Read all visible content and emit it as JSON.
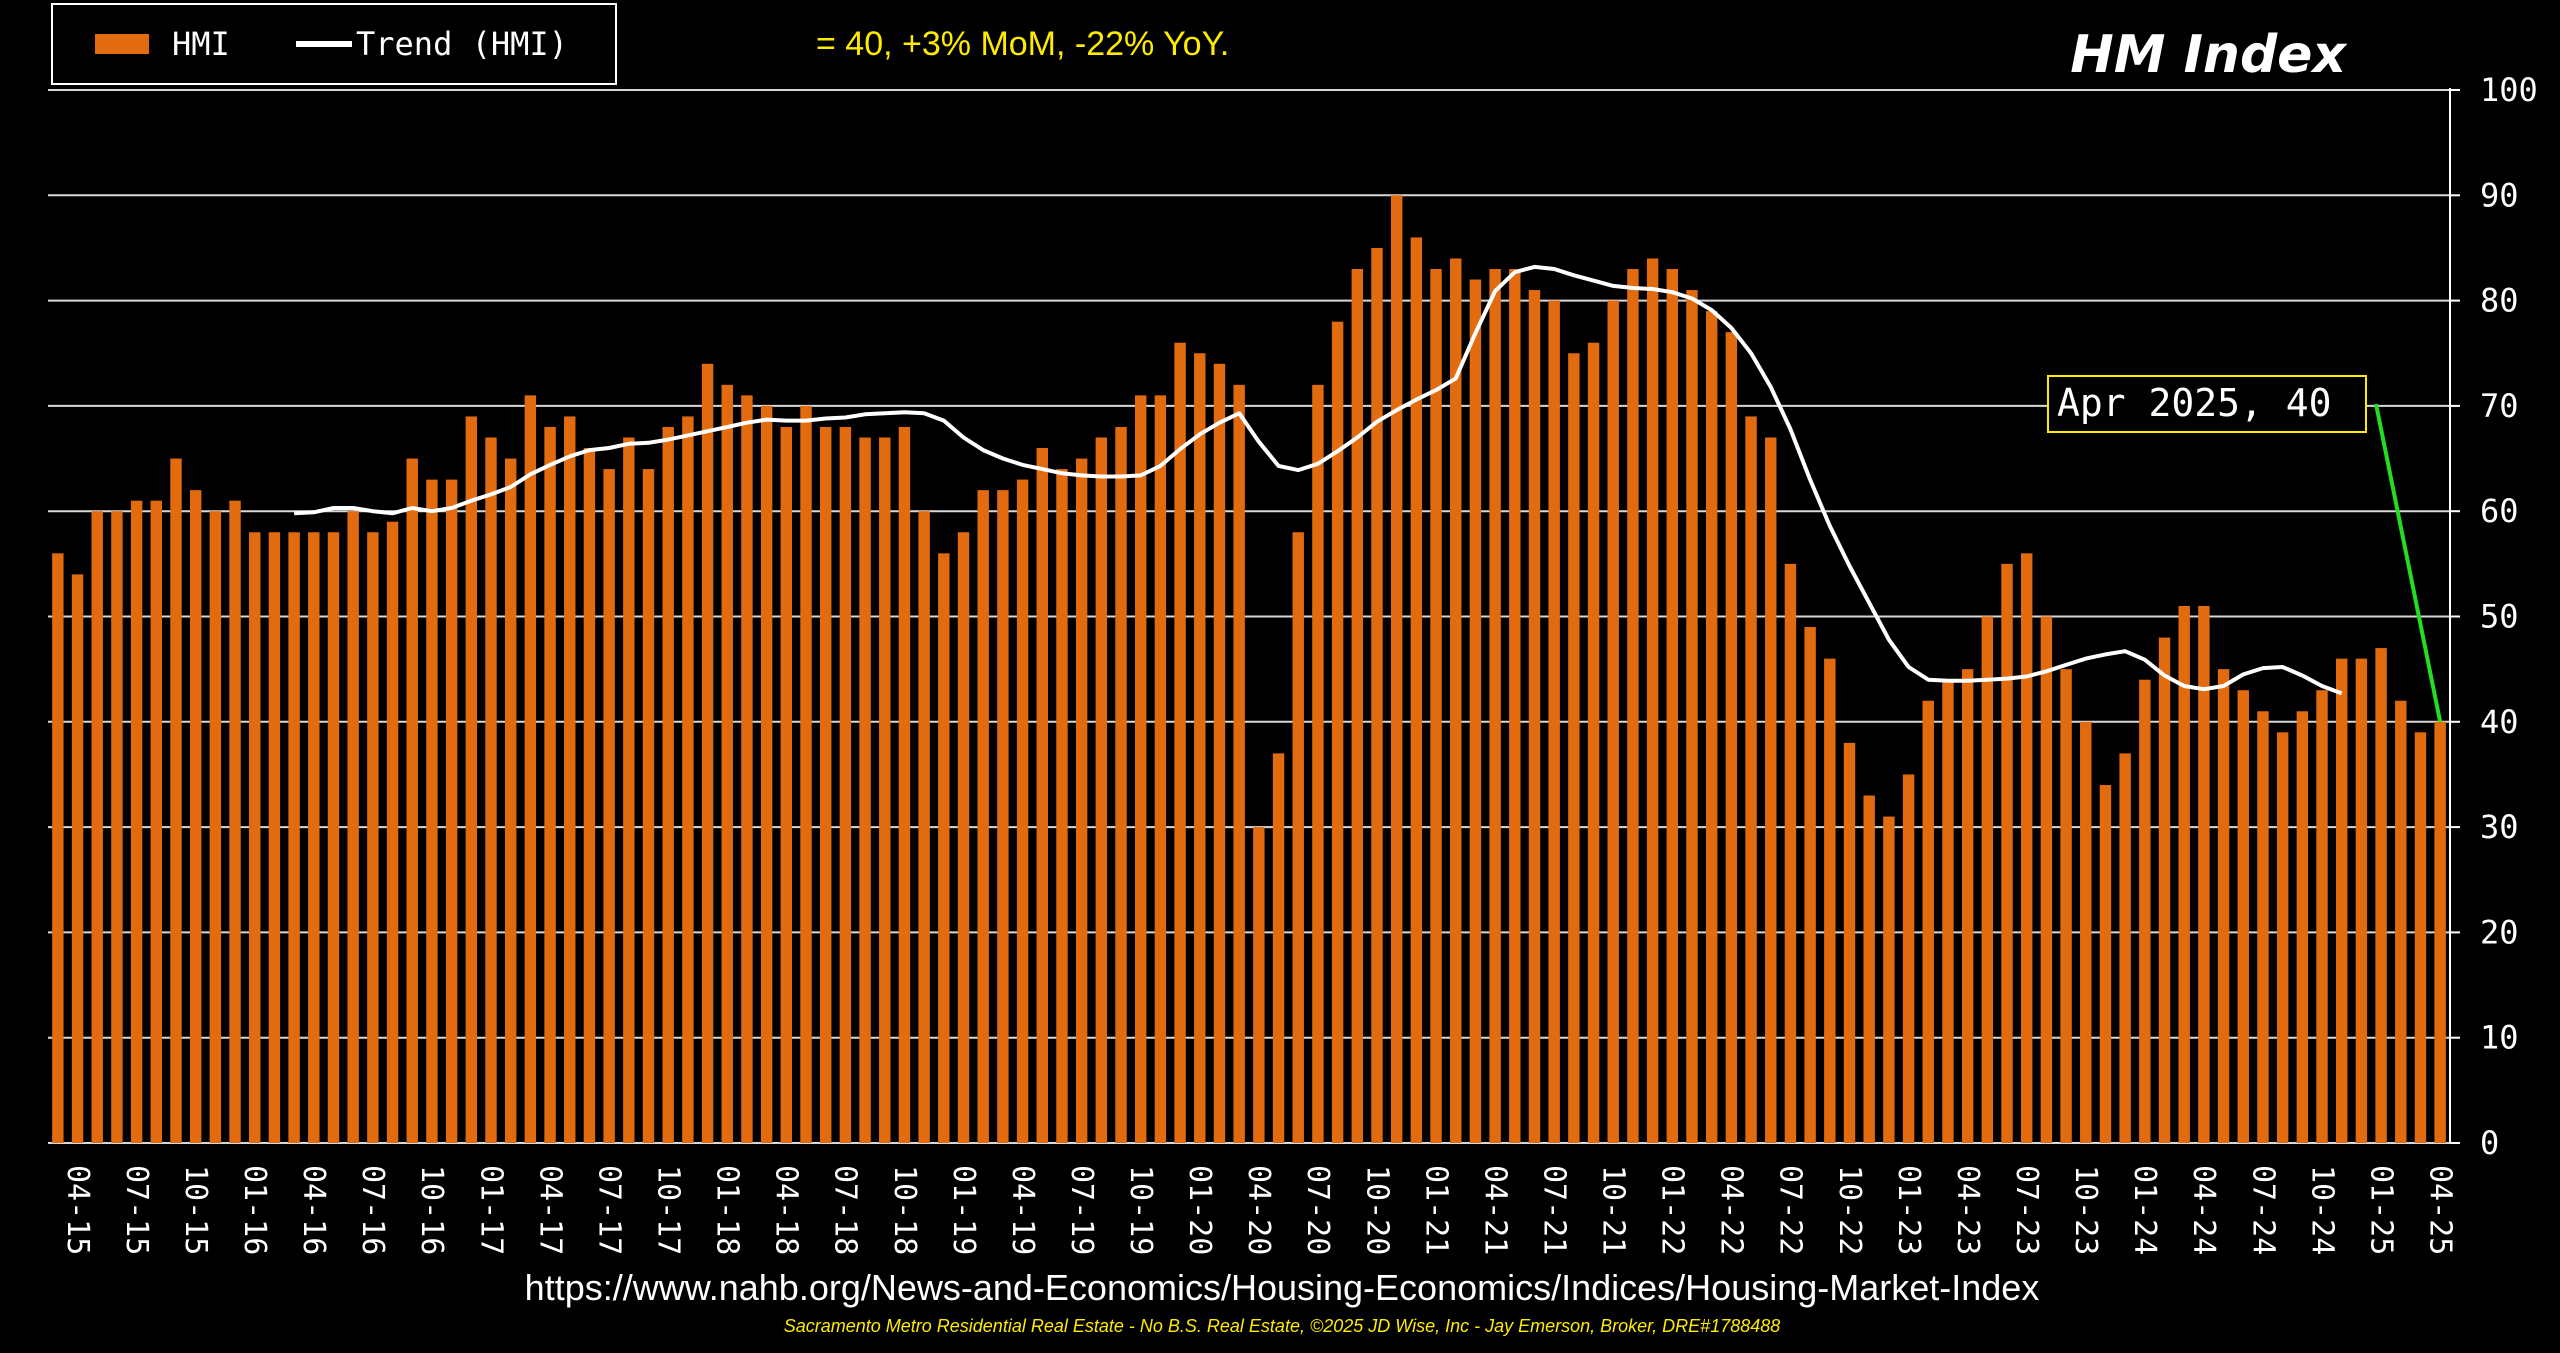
{
  "colors": {
    "background": "#000000",
    "bar": "#e26b10",
    "trend": "#ffffff",
    "grid": "#d8d8d8",
    "subtitle": "#ffeb00",
    "callout_line": "#22dd22",
    "callout_border": "#ffeb00"
  },
  "legend": {
    "bar_label": "HMI",
    "trend_label": "Trend (HMI)"
  },
  "subtitle": "= 40, +3% MoM, -22% YoY.",
  "title": "HM Index",
  "source_url": "https://www.nahb.org/News-and-Economics/Housing-Economics/Indices/Housing-Market-Index",
  "footer": "Sacramento Metro Residential Real Estate - No B.S. Real Estate, ©2025 JD Wise, Inc - Jay Emerson, Broker, DRE#1788488",
  "callout": {
    "label": "Apr 2025,  40"
  },
  "chart_data": {
    "type": "bar",
    "ylim": [
      0,
      100
    ],
    "yticks": [
      0,
      10,
      20,
      30,
      40,
      50,
      60,
      70,
      80,
      90,
      100
    ],
    "grid": true,
    "legend_position": "top-left",
    "xtick_labels": [
      "04-15",
      "07-15",
      "10-15",
      "01-16",
      "04-16",
      "07-16",
      "10-16",
      "01-17",
      "04-17",
      "07-17",
      "10-17",
      "01-18",
      "04-18",
      "07-18",
      "10-18",
      "01-19",
      "04-19",
      "07-19",
      "10-19",
      "01-20",
      "04-20",
      "07-20",
      "10-20",
      "01-21",
      "04-21",
      "07-21",
      "10-21",
      "01-22",
      "04-22",
      "07-22",
      "10-22",
      "01-23",
      "04-23",
      "07-23",
      "10-23",
      "01-24",
      "04-24",
      "07-24",
      "10-24",
      "01-25",
      "04-25"
    ],
    "series": [
      {
        "name": "HMI",
        "values": [
          56,
          54,
          60,
          60,
          61,
          61,
          65,
          62,
          60,
          61,
          58,
          58,
          58,
          58,
          58,
          60,
          58,
          59,
          65,
          63,
          63,
          69,
          67,
          65,
          71,
          68,
          69,
          66,
          64,
          67,
          64,
          68,
          69,
          74,
          72,
          71,
          70,
          68,
          70,
          68,
          68,
          67,
          67,
          68,
          60,
          56,
          58,
          62,
          62,
          63,
          66,
          64,
          65,
          67,
          68,
          71,
          71,
          76,
          75,
          74,
          72,
          30,
          37,
          58,
          72,
          78,
          83,
          85,
          90,
          86,
          83,
          84,
          82,
          83,
          83,
          81,
          80,
          75,
          76,
          80,
          83,
          84,
          83,
          81,
          79,
          77,
          69,
          67,
          55,
          49,
          46,
          38,
          33,
          31,
          35,
          42,
          44,
          45,
          50,
          55,
          56,
          50,
          45,
          40,
          34,
          37,
          44,
          48,
          51,
          51,
          45,
          43,
          41,
          39,
          41,
          43,
          46,
          46,
          47,
          42,
          39,
          40
        ]
      },
      {
        "name": "Trend (HMI)",
        "start_index": 12,
        "values": [
          59.8,
          59.9,
          60.3,
          60.3,
          60.0,
          59.8,
          60.3,
          60.0,
          60.3,
          61.0,
          61.6,
          62.3,
          63.5,
          64.4,
          65.2,
          65.8,
          66.0,
          66.4,
          66.5,
          66.8,
          67.2,
          67.6,
          68.0,
          68.4,
          68.7,
          68.6,
          68.6,
          68.8,
          68.9,
          69.2,
          69.3,
          69.4,
          69.3,
          68.6,
          67.0,
          65.8,
          65.0,
          64.4,
          64.0,
          63.6,
          63.4,
          63.3,
          63.3,
          63.4,
          64.3,
          65.9,
          67.3,
          68.4,
          69.3,
          66.6,
          64.3,
          63.9,
          64.5,
          65.7,
          67.0,
          68.5,
          69.6,
          70.6,
          71.5,
          72.6,
          76.9,
          80.9,
          82.7,
          83.2,
          83.0,
          82.4,
          81.9,
          81.4,
          81.2,
          81.1,
          80.8,
          80.2,
          79.1,
          77.4,
          75.0,
          71.8,
          67.8,
          63.0,
          58.6,
          54.8,
          51.3,
          47.8,
          45.2,
          44.0,
          43.9,
          43.9,
          44.0,
          44.1,
          44.3,
          44.8,
          45.4,
          46.0,
          46.4,
          46.7,
          45.9,
          44.4,
          43.4,
          43.1,
          43.4,
          44.5,
          45.1,
          45.2,
          44.4,
          43.4,
          42.7
        ]
      }
    ]
  }
}
